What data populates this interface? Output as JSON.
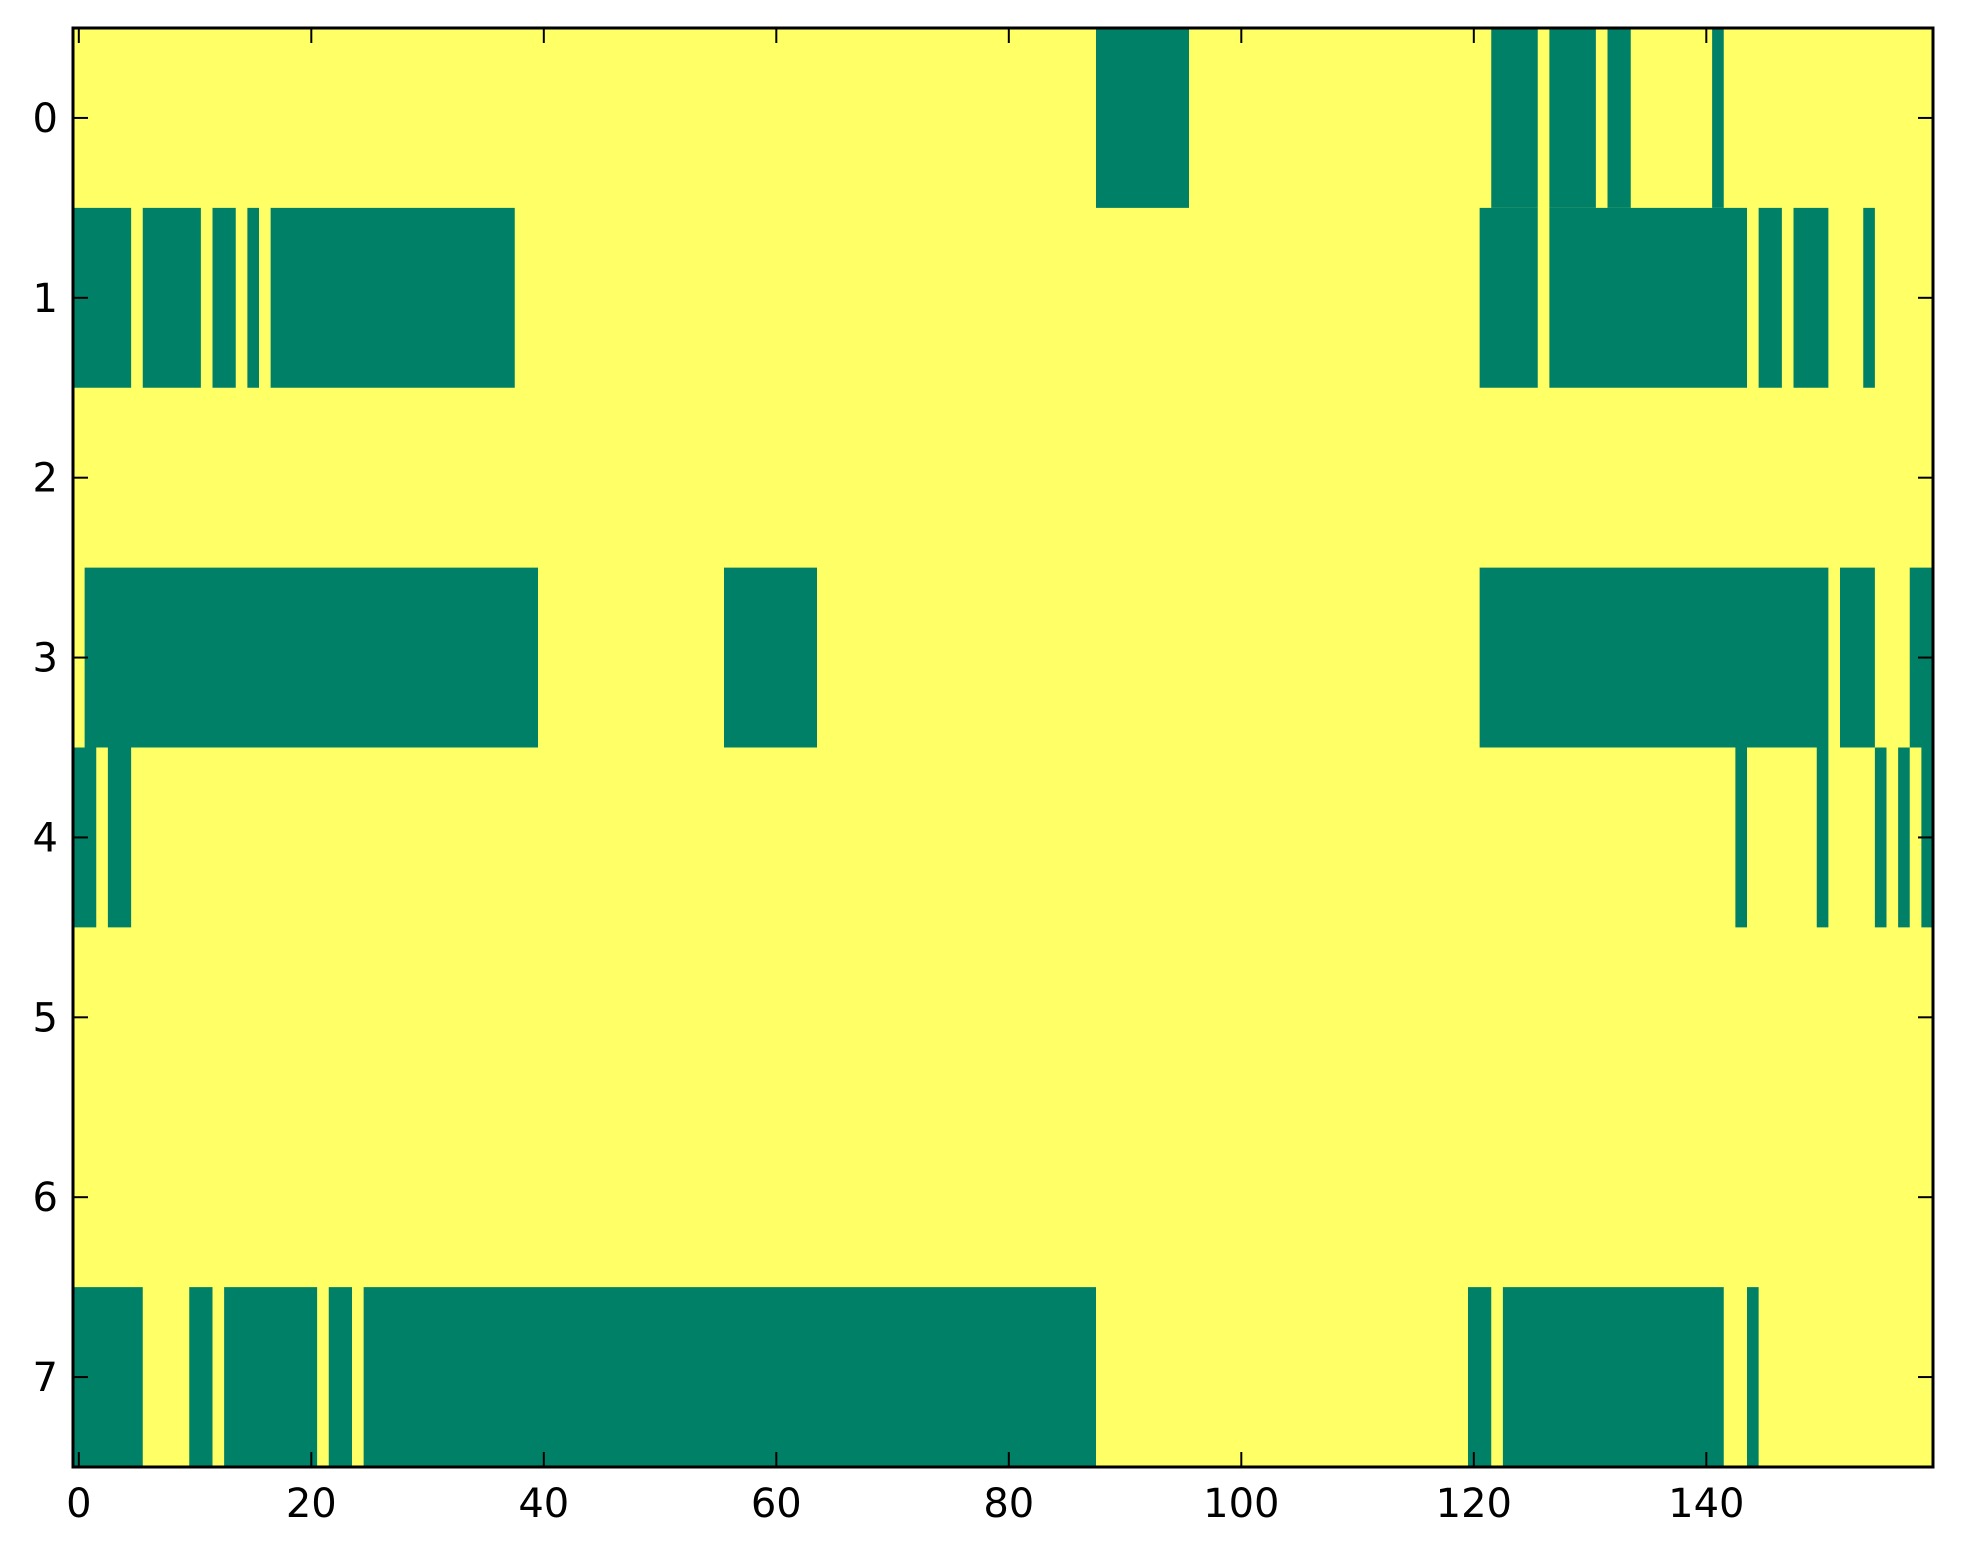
{
  "chart_data": {
    "type": "heatmap",
    "title": "",
    "xlabel": "",
    "ylabel": "",
    "n_rows": 8,
    "n_cols": 160,
    "xlim": [
      -0.5,
      159.5
    ],
    "ylim": [
      7.5,
      -0.5
    ],
    "xticks": [
      0,
      20,
      40,
      60,
      80,
      100,
      120,
      140
    ],
    "yticks": [
      0,
      1,
      2,
      3,
      4,
      5,
      6,
      7
    ],
    "grid": false,
    "colormap": "summer",
    "colors": {
      "0": "#008066",
      "1": "#ffff66"
    },
    "value_encoding": "background cells are value 1 (yellow); listed inclusive column ranges are value 0 (green)",
    "rows": [
      {
        "row": 0,
        "value0_ranges": [
          [
            88,
            95
          ],
          [
            122,
            125
          ],
          [
            127,
            130
          ],
          [
            132,
            133
          ],
          [
            141,
            141
          ]
        ]
      },
      {
        "row": 1,
        "value0_ranges": [
          [
            0,
            4
          ],
          [
            6,
            10
          ],
          [
            12,
            13
          ],
          [
            15,
            15
          ],
          [
            17,
            37
          ],
          [
            121,
            125
          ],
          [
            127,
            143
          ],
          [
            145,
            146
          ],
          [
            148,
            150
          ],
          [
            154,
            154
          ]
        ]
      },
      {
        "row": 2,
        "value0_ranges": []
      },
      {
        "row": 3,
        "value0_ranges": [
          [
            1,
            39
          ],
          [
            56,
            63
          ],
          [
            121,
            150
          ],
          [
            152,
            154
          ],
          [
            158,
            159
          ]
        ]
      },
      {
        "row": 4,
        "value0_ranges": [
          [
            0,
            1
          ],
          [
            3,
            4
          ],
          [
            143,
            143
          ],
          [
            150,
            150
          ],
          [
            155,
            155
          ],
          [
            157,
            157
          ],
          [
            159,
            159
          ]
        ]
      },
      {
        "row": 5,
        "value0_ranges": []
      },
      {
        "row": 6,
        "value0_ranges": []
      },
      {
        "row": 7,
        "value0_ranges": [
          [
            0,
            5
          ],
          [
            10,
            11
          ],
          [
            13,
            20
          ],
          [
            22,
            23
          ],
          [
            25,
            87
          ],
          [
            120,
            121
          ],
          [
            123,
            141
          ],
          [
            144,
            144
          ]
        ]
      }
    ]
  }
}
